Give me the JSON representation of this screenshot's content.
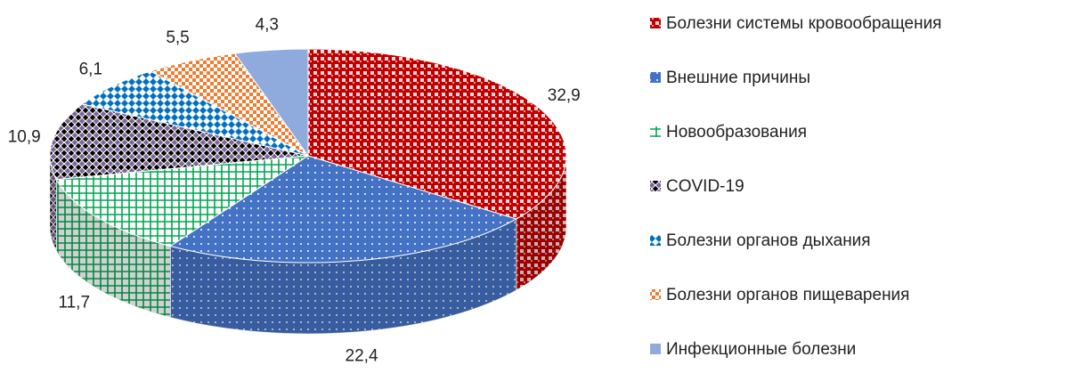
{
  "chart_data": {
    "type": "pie",
    "categories": [
      "Болезни системы кровообращения",
      "Внешние причины",
      "Новообразования",
      "COVID-19",
      "Болезни органов дыхания",
      "Болезни органов пищеварения",
      "Инфекционные болезни"
    ],
    "values": [
      32.9,
      22.4,
      11.7,
      10.9,
      6.1,
      5.5,
      4.3
    ],
    "value_labels": [
      "32,9",
      "22,4",
      "11,7",
      "10,9",
      "6,1",
      "5,5",
      "4,3"
    ],
    "colors": [
      "#c00000",
      "#4472c4",
      "#00a651",
      "#7b6596",
      "#0070c0",
      "#ed7d31",
      "#8faadc"
    ],
    "legend": "right"
  }
}
